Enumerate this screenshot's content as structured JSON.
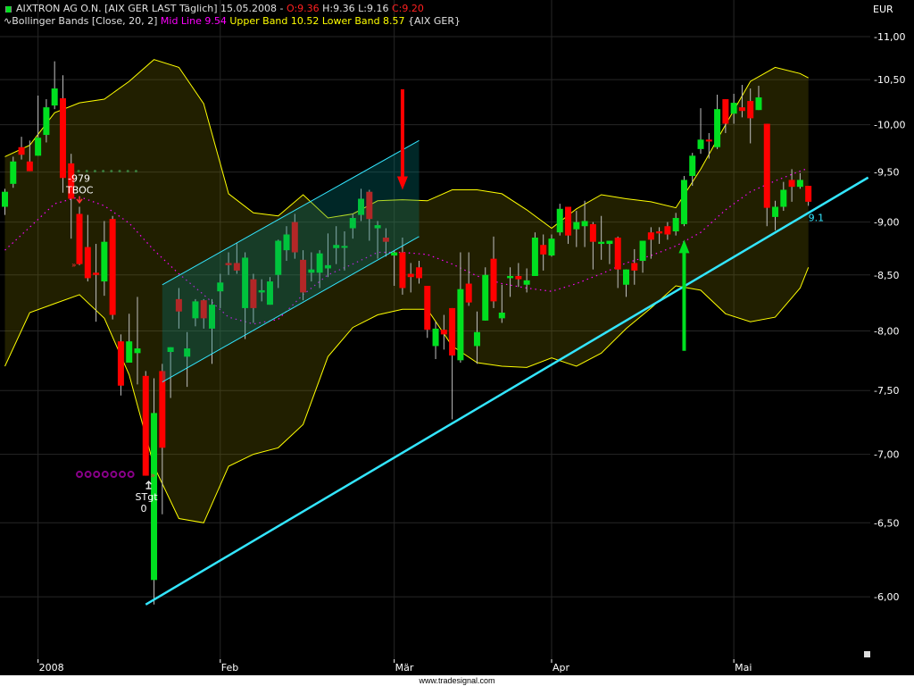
{
  "header": {
    "title": "AIXTRON AG O.N. [AIX GER LAST Täglich] 15.05.2008 - ",
    "open": "O:9.36",
    "high": "H:9.36",
    "low": "L:9.16",
    "close": "C:9.20",
    "indicator_name": "Bollinger Bands [Close, 20, 2] ",
    "mid_line": "Mid Line 9.54 ",
    "bands": "Upper Band 10.52 Lower Band 8.57 ",
    "source": "{AIX GER}",
    "symbol_icon": "candle-icon",
    "indicator_icon": "wave-icon"
  },
  "footer": {
    "text": "www.tradesignal.com"
  },
  "colors": {
    "background": "#000000",
    "up": "#00e020",
    "down": "#ff0000",
    "wick": "#c0c0c0",
    "band_line": "#ffff00",
    "mid_line": "#ff00ff",
    "trendline": "#33e6ff",
    "grid": "#262626"
  },
  "chart_data": {
    "type": "candlestick",
    "currency": "EUR",
    "y_axis": {
      "scale": "log",
      "range": [
        5.85,
        11.0
      ],
      "ticks": [
        11.0,
        10.5,
        10.0,
        9.5,
        9.0,
        8.5,
        8.0,
        7.5,
        7.0,
        6.5,
        6.0
      ],
      "tick_labels": [
        "11,00",
        "10,50",
        "10,00",
        "9,50",
        "9,00",
        "8,50",
        "8,00",
        "7,50",
        "7,00",
        "6,50",
        "6,00"
      ],
      "position": "right"
    },
    "x_axis": {
      "ticks": [
        {
          "label": "2008",
          "date": "2008-01-02"
        },
        {
          "label": "Feb",
          "date": "2008-02-01"
        },
        {
          "label": "Mär",
          "date": "2008-03-03"
        },
        {
          "label": "Apr",
          "date": "2008-04-01"
        },
        {
          "label": "Mai",
          "date": "2008-05-02"
        }
      ]
    },
    "grid": true,
    "candle_fields": [
      "date",
      "open",
      "high",
      "low",
      "close"
    ],
    "candles": [
      [
        "2007-12-20",
        9.15,
        9.33,
        9.07,
        9.3
      ],
      [
        "2007-12-21",
        9.38,
        9.66,
        9.34,
        9.61
      ],
      [
        "2007-12-27",
        9.76,
        9.87,
        9.63,
        9.68
      ],
      [
        "2007-12-28",
        9.61,
        9.83,
        9.51,
        9.51
      ],
      [
        "2008-01-02",
        9.67,
        10.32,
        9.67,
        9.86
      ],
      [
        "2008-01-03",
        9.89,
        10.28,
        9.81,
        10.19
      ],
      [
        "2008-01-04",
        10.21,
        10.71,
        10.17,
        10.4
      ],
      [
        "2008-01-07",
        10.29,
        10.55,
        9.29,
        9.44
      ],
      [
        "2008-01-08",
        9.59,
        9.69,
        8.84,
        9.23
      ],
      [
        "2008-01-09",
        9.08,
        9.15,
        8.59,
        8.6
      ],
      [
        "2008-01-10",
        8.76,
        9.07,
        8.44,
        8.47
      ],
      [
        "2008-01-11",
        8.52,
        8.79,
        8.08,
        8.5
      ],
      [
        "2008-01-14",
        8.44,
        9.01,
        8.31,
        8.81
      ],
      [
        "2008-01-15",
        9.03,
        9.06,
        8.1,
        8.14
      ],
      [
        "2008-01-16",
        7.91,
        7.97,
        7.46,
        7.54
      ],
      [
        "2008-01-17",
        7.73,
        8.15,
        7.73,
        7.91
      ],
      [
        "2008-01-18",
        7.81,
        8.3,
        7.55,
        7.85
      ],
      [
        "2008-01-21",
        7.62,
        7.66,
        6.84,
        6.84
      ],
      [
        "2008-01-22",
        6.11,
        7.6,
        5.95,
        7.32
      ],
      [
        "2008-01-23",
        7.66,
        7.72,
        6.56,
        7.05
      ],
      [
        "2008-01-24",
        7.82,
        7.86,
        7.44,
        7.86
      ],
      [
        "2008-01-25",
        8.28,
        8.38,
        8.02,
        8.17
      ],
      [
        "2008-01-28",
        7.78,
        7.99,
        7.53,
        7.85
      ],
      [
        "2008-01-29",
        8.11,
        8.28,
        8.04,
        8.26
      ],
      [
        "2008-01-30",
        8.27,
        8.28,
        8.02,
        8.11
      ],
      [
        "2008-01-31",
        8.02,
        8.28,
        7.72,
        8.23
      ],
      [
        "2008-02-01",
        8.35,
        8.51,
        8.2,
        8.43
      ],
      [
        "2008-02-04",
        8.61,
        8.71,
        8.5,
        8.59
      ],
      [
        "2008-02-05",
        8.61,
        8.8,
        8.51,
        8.54
      ],
      [
        "2008-02-06",
        8.2,
        8.71,
        7.93,
        8.66
      ],
      [
        "2008-02-07",
        8.46,
        8.51,
        8.07,
        8.2
      ],
      [
        "2008-02-08",
        8.34,
        8.46,
        8.26,
        8.36
      ],
      [
        "2008-02-11",
        8.23,
        8.48,
        8.23,
        8.44
      ],
      [
        "2008-02-12",
        8.5,
        8.83,
        8.38,
        8.82
      ],
      [
        "2008-02-13",
        8.73,
        8.96,
        8.63,
        8.88
      ],
      [
        "2008-02-14",
        9.0,
        9.08,
        8.65,
        8.71
      ],
      [
        "2008-02-15",
        8.64,
        8.73,
        8.27,
        8.34
      ],
      [
        "2008-02-18",
        8.52,
        8.71,
        8.44,
        8.55
      ],
      [
        "2008-02-19",
        8.52,
        8.73,
        8.38,
        8.7
      ],
      [
        "2008-02-20",
        8.56,
        8.89,
        8.48,
        8.59
      ],
      [
        "2008-02-21",
        8.75,
        8.96,
        8.6,
        8.78
      ],
      [
        "2008-02-22",
        8.76,
        8.91,
        8.54,
        8.77
      ],
      [
        "2008-02-25",
        8.94,
        9.08,
        8.84,
        9.04
      ],
      [
        "2008-02-26",
        9.07,
        9.33,
        9.01,
        9.23
      ],
      [
        "2008-02-27",
        9.3,
        9.32,
        8.82,
        9.03
      ],
      [
        "2008-02-28",
        8.94,
        9.01,
        8.65,
        8.97
      ],
      [
        "2008-02-29",
        8.85,
        8.94,
        8.67,
        8.81
      ],
      [
        "2008-03-03",
        8.68,
        8.73,
        8.4,
        8.71
      ],
      [
        "2008-03-04",
        8.71,
        8.85,
        8.32,
        8.38
      ],
      [
        "2008-03-05",
        8.51,
        8.61,
        8.34,
        8.48
      ],
      [
        "2008-03-06",
        8.57,
        8.63,
        8.42,
        8.47
      ],
      [
        "2008-03-07",
        8.4,
        8.4,
        7.94,
        8.01
      ],
      [
        "2008-03-10",
        7.87,
        8.08,
        7.76,
        8.02
      ],
      [
        "2008-03-11",
        8.01,
        8.14,
        7.84,
        7.97
      ],
      [
        "2008-03-12",
        8.2,
        8.2,
        7.27,
        7.79
      ],
      [
        "2008-03-13",
        7.75,
        8.71,
        7.73,
        8.37
      ],
      [
        "2008-03-14",
        8.42,
        8.71,
        8.22,
        8.25
      ],
      [
        "2008-03-17",
        7.87,
        8.17,
        7.72,
        7.99
      ],
      [
        "2008-03-18",
        8.09,
        8.57,
        8.09,
        8.5
      ],
      [
        "2008-03-19",
        8.65,
        8.86,
        8.2,
        8.26
      ],
      [
        "2008-03-20",
        8.11,
        8.41,
        8.07,
        8.16
      ],
      [
        "2008-03-25",
        8.47,
        8.57,
        8.3,
        8.49
      ],
      [
        "2008-03-26",
        8.49,
        8.61,
        8.39,
        8.46
      ],
      [
        "2008-03-27",
        8.41,
        8.56,
        8.34,
        8.45
      ],
      [
        "2008-03-28",
        8.49,
        8.9,
        8.49,
        8.85
      ],
      [
        "2008-03-31",
        8.78,
        8.88,
        8.54,
        8.69
      ],
      [
        "2008-04-01",
        8.68,
        8.88,
        8.67,
        8.84
      ],
      [
        "2008-04-02",
        8.9,
        9.18,
        8.87,
        9.13
      ],
      [
        "2008-04-03",
        9.15,
        9.15,
        8.79,
        8.87
      ],
      [
        "2008-04-04",
        8.93,
        9.11,
        8.76,
        9.0
      ],
      [
        "2008-04-07",
        8.96,
        9.21,
        8.76,
        9.01
      ],
      [
        "2008-04-08",
        8.98,
        9.0,
        8.55,
        8.81
      ],
      [
        "2008-04-09",
        8.79,
        9.06,
        8.64,
        8.81
      ],
      [
        "2008-04-10",
        8.79,
        8.82,
        8.6,
        8.82
      ],
      [
        "2008-04-11",
        8.85,
        8.86,
        8.38,
        8.55
      ],
      [
        "2008-04-14",
        8.41,
        8.55,
        8.3,
        8.55
      ],
      [
        "2008-04-15",
        8.61,
        8.74,
        8.41,
        8.54
      ],
      [
        "2008-04-16",
        8.63,
        8.82,
        8.52,
        8.82
      ],
      [
        "2008-04-17",
        8.9,
        8.95,
        8.65,
        8.83
      ],
      [
        "2008-04-18",
        8.91,
        8.95,
        8.79,
        8.89
      ],
      [
        "2008-04-21",
        8.96,
        9.0,
        8.83,
        8.88
      ],
      [
        "2008-04-22",
        8.91,
        9.09,
        8.87,
        9.04
      ],
      [
        "2008-04-23",
        8.98,
        9.46,
        8.96,
        9.42
      ],
      [
        "2008-04-24",
        9.46,
        9.7,
        9.36,
        9.67
      ],
      [
        "2008-04-25",
        9.74,
        10.18,
        9.69,
        9.84
      ],
      [
        "2008-04-28",
        9.84,
        9.91,
        9.64,
        9.82
      ],
      [
        "2008-04-29",
        9.76,
        10.33,
        9.74,
        10.17
      ],
      [
        "2008-04-30",
        10.28,
        10.28,
        9.91,
        10.01
      ],
      [
        "2008-05-02",
        10.12,
        10.34,
        10.01,
        10.24
      ],
      [
        "2008-05-05",
        10.19,
        10.44,
        10.08,
        10.15
      ],
      [
        "2008-05-06",
        10.26,
        10.4,
        9.8,
        10.07
      ],
      [
        "2008-05-07",
        10.16,
        10.43,
        10.16,
        10.3
      ],
      [
        "2008-05-08",
        10.01,
        10.01,
        8.96,
        9.14
      ],
      [
        "2008-05-09",
        9.05,
        9.21,
        8.92,
        9.15
      ],
      [
        "2008-05-12",
        9.15,
        9.4,
        9.11,
        9.32
      ],
      [
        "2008-05-13",
        9.42,
        9.53,
        9.2,
        9.35
      ],
      [
        "2008-05-14",
        9.35,
        9.49,
        9.33,
        9.42
      ],
      [
        "2008-05-15",
        9.36,
        9.36,
        9.16,
        9.2
      ]
    ],
    "bollinger": {
      "period": 20,
      "deviations": 2,
      "fields": [
        "date",
        "upper",
        "mid",
        "lower"
      ],
      "points": [
        [
          "2007-12-20",
          9.66,
          8.73,
          7.7
        ],
        [
          "2007-12-28",
          9.78,
          8.95,
          8.16
        ],
        [
          "2008-01-04",
          10.13,
          9.18,
          8.24
        ],
        [
          "2008-01-09",
          10.24,
          9.25,
          8.32
        ],
        [
          "2008-01-14",
          10.28,
          9.16,
          8.11
        ],
        [
          "2008-01-17",
          10.48,
          8.99,
          7.63
        ],
        [
          "2008-01-22",
          10.73,
          8.73,
          6.91
        ],
        [
          "2008-01-25",
          10.64,
          8.51,
          6.53
        ],
        [
          "2008-01-30",
          10.23,
          8.32,
          6.5
        ],
        [
          "2008-02-04",
          9.28,
          8.12,
          6.91
        ],
        [
          "2008-02-07",
          9.09,
          8.06,
          7.0
        ],
        [
          "2008-02-12",
          9.06,
          8.1,
          7.05
        ],
        [
          "2008-02-15",
          9.27,
          8.32,
          7.23
        ],
        [
          "2008-02-20",
          9.04,
          8.5,
          7.78
        ],
        [
          "2008-02-25",
          9.08,
          8.6,
          8.03
        ],
        [
          "2008-02-28",
          9.21,
          8.71,
          8.14
        ],
        [
          "2008-03-04",
          9.22,
          8.71,
          8.19
        ],
        [
          "2008-03-07",
          9.21,
          8.69,
          8.19
        ],
        [
          "2008-03-12",
          9.32,
          8.6,
          7.87
        ],
        [
          "2008-03-17",
          9.32,
          8.49,
          7.73
        ],
        [
          "2008-03-20",
          9.28,
          8.42,
          7.7
        ],
        [
          "2008-03-27",
          9.12,
          8.38,
          7.69
        ],
        [
          "2008-04-01",
          8.94,
          8.35,
          7.77
        ],
        [
          "2008-04-04",
          9.13,
          8.42,
          7.7
        ],
        [
          "2008-04-09",
          9.27,
          8.51,
          7.81
        ],
        [
          "2008-04-14",
          9.23,
          8.61,
          8.02
        ],
        [
          "2008-04-17",
          9.2,
          8.68,
          8.2
        ],
        [
          "2008-04-22",
          9.14,
          8.77,
          8.4
        ],
        [
          "2008-04-25",
          9.53,
          8.9,
          8.36
        ],
        [
          "2008-04-30",
          10.0,
          9.12,
          8.15
        ],
        [
          "2008-05-06",
          10.48,
          9.3,
          8.08
        ],
        [
          "2008-05-09",
          10.64,
          9.41,
          8.12
        ],
        [
          "2008-05-14",
          10.57,
          9.51,
          8.38
        ],
        [
          "2008-05-15",
          10.52,
          9.54,
          8.57
        ]
      ]
    },
    "annotations": {
      "channel": {
        "start": {
          "date": "2008-01-23",
          "upper": 8.41,
          "lower": 7.57
        },
        "end": {
          "date": "2008-03-06",
          "upper": 9.83,
          "lower": 8.86
        }
      },
      "trendline": {
        "start": {
          "date": "2008-01-21",
          "price": 5.95
        },
        "end": {
          "date": "2008-05-15",
          "price": 9.09
        },
        "extends_right": true,
        "label": "9.1"
      },
      "down_arrow": {
        "date": "2008-03-04",
        "from": 10.39,
        "to": 9.32
      },
      "up_arrow": {
        "date": "2008-04-23",
        "from": 7.83,
        "to": 8.83
      },
      "sell_signal": {
        "date": "2008-01-09",
        "label_value": "-979",
        "label_name": "TBOC",
        "level": 9.51,
        "level_end_date": "2008-01-18",
        "arrow_price": 9.2,
        "chevron_price": 8.6
      },
      "stop_target": {
        "label_name": "STgt",
        "label_value": "0",
        "date": "2008-01-22",
        "level": 6.85,
        "circles_from": "2008-01-09",
        "circles_to": "2008-01-18"
      }
    }
  }
}
